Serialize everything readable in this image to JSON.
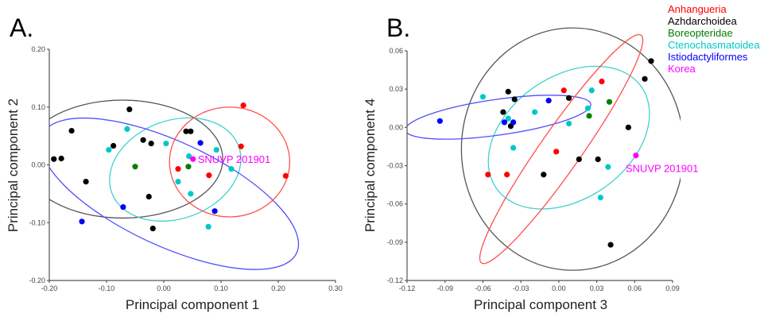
{
  "legend": {
    "placement": "top-right",
    "entries": [
      {
        "label": "Anhangueria",
        "color": "#ff0000"
      },
      {
        "label": "Azhdarchoidea",
        "color": "#000000"
      },
      {
        "label": "Boreopteridae",
        "color": "#008000"
      },
      {
        "label": "Ctenochasmatoidea",
        "color": "#00c8c8"
      },
      {
        "label": "Istiodactyliformes",
        "color": "#0000ff"
      },
      {
        "label": "Korea",
        "color": "#ff00ff"
      }
    ]
  },
  "chart_data": [
    {
      "type": "scatter",
      "panel_label": "A.",
      "xlabel": "Principal component 1",
      "ylabel": "Principal component 2",
      "xlim": [
        -0.2,
        0.3
      ],
      "ylim": [
        -0.2,
        0.2
      ],
      "xticks": [
        "-0.20",
        "-0.10",
        "0.00",
        "0.10",
        "0.20",
        "0.30"
      ],
      "yticks": [
        "0.20",
        "0.10",
        "0.00",
        "-0.10",
        "-0.20"
      ],
      "grid": false,
      "annotation": {
        "text": "SNUVP 201901",
        "x": 0.051,
        "y": 0.01
      },
      "series": [
        {
          "name": "Azhdarchoidea",
          "color": "#000000",
          "points": [
            [
              -0.192,
              0.01
            ],
            [
              -0.179,
              0.011
            ],
            [
              -0.161,
              0.059
            ],
            [
              -0.136,
              -0.029
            ],
            [
              -0.088,
              0.033
            ],
            [
              -0.06,
              0.096
            ],
            [
              -0.036,
              0.043
            ],
            [
              -0.022,
              0.037
            ],
            [
              -0.026,
              -0.055
            ],
            [
              -0.019,
              -0.11
            ],
            [
              0.039,
              0.058
            ],
            [
              0.047,
              0.058
            ]
          ]
        },
        {
          "name": "Ctenochasmatoidea",
          "color": "#00c8c8",
          "points": [
            [
              -0.096,
              0.026
            ],
            [
              -0.064,
              0.062
            ],
            [
              0.004,
              0.037
            ],
            [
              0.044,
              0.015
            ],
            [
              0.025,
              -0.029
            ],
            [
              0.047,
              -0.05
            ],
            [
              0.092,
              0.026
            ],
            [
              0.118,
              -0.007
            ],
            [
              0.078,
              -0.107
            ]
          ]
        },
        {
          "name": "Istiodactyliformes",
          "color": "#0000ff",
          "points": [
            [
              -0.143,
              -0.098
            ],
            [
              -0.071,
              -0.073
            ],
            [
              0.064,
              0.038
            ],
            [
              0.089,
              -0.08
            ]
          ]
        },
        {
          "name": "Anhangueria",
          "color": "#ff0000",
          "points": [
            [
              0.025,
              -0.007
            ],
            [
              0.079,
              -0.018
            ],
            [
              0.135,
              0.032
            ],
            [
              0.139,
              0.103
            ],
            [
              0.213,
              -0.019
            ]
          ]
        },
        {
          "name": "Boreopteridae",
          "color": "#008000",
          "points": [
            [
              -0.05,
              -0.003
            ],
            [
              0.043,
              -0.003
            ]
          ]
        },
        {
          "name": "Korea",
          "color": "#ff00ff",
          "points": [
            [
              0.051,
              0.01
            ]
          ]
        }
      ],
      "ellipses": [
        {
          "group": "Azhdarchoidea",
          "color": "#555555",
          "cx": -0.072,
          "cy": 0.01,
          "rx": 0.175,
          "ry": 0.102,
          "angle": 0
        },
        {
          "group": "Ctenochasmatoidea",
          "color": "#40d0d0",
          "cx": 0.02,
          "cy": -0.008,
          "rx": 0.118,
          "ry": 0.085,
          "angle": -20
        },
        {
          "group": "Istiodactyliformes",
          "color": "#5050ff",
          "cx": 0.01,
          "cy": -0.05,
          "rx": 0.245,
          "ry": 0.09,
          "angle": 25
        },
        {
          "group": "Anhangueria",
          "color": "#ff5050",
          "cx": 0.115,
          "cy": 0.005,
          "rx": 0.105,
          "ry": 0.095,
          "angle": 0
        }
      ]
    },
    {
      "type": "scatter",
      "panel_label": "B.",
      "xlabel": "Principal component 3",
      "ylabel": "Principal component 4",
      "xlim": [
        -0.12,
        0.09
      ],
      "ylim": [
        -0.12,
        0.06
      ],
      "xticks": [
        "-0.12",
        "-0.09",
        "-0.06",
        "-0.03",
        "0.00",
        "0.03",
        "0.06",
        "0.09"
      ],
      "yticks": [
        "0.06",
        "0.03",
        "0.00",
        "-0.03",
        "-0.06",
        "-0.09",
        "-0.12"
      ],
      "grid": false,
      "annotation": {
        "text": "SNUVP 201901",
        "x": 0.061,
        "y": -0.022
      },
      "series": [
        {
          "name": "Azhdarchoidea",
          "color": "#000000",
          "points": [
            [
              -0.04,
              0.028
            ],
            [
              -0.035,
              0.022
            ],
            [
              -0.044,
              0.012
            ],
            [
              -0.038,
              0.001
            ],
            [
              -0.012,
              -0.037
            ],
            [
              0.008,
              0.023
            ],
            [
              0.016,
              -0.025
            ],
            [
              0.031,
              -0.025
            ],
            [
              0.055,
              0.0
            ],
            [
              0.068,
              0.038
            ],
            [
              0.073,
              0.052
            ],
            [
              0.041,
              -0.092
            ]
          ]
        },
        {
          "name": "Ctenochasmatoidea",
          "color": "#00c8c8",
          "points": [
            [
              -0.06,
              0.024
            ],
            [
              -0.04,
              0.007
            ],
            [
              -0.036,
              -0.016
            ],
            [
              -0.019,
              0.012
            ],
            [
              0.008,
              0.003
            ],
            [
              0.023,
              0.015
            ],
            [
              0.026,
              0.029
            ],
            [
              0.039,
              -0.031
            ],
            [
              0.033,
              -0.055
            ]
          ]
        },
        {
          "name": "Istiodactyliformes",
          "color": "#0000ff",
          "points": [
            [
              -0.094,
              0.005
            ],
            [
              -0.043,
              0.004
            ],
            [
              -0.036,
              0.004
            ],
            [
              -0.008,
              0.021
            ]
          ]
        },
        {
          "name": "Anhangueria",
          "color": "#ff0000",
          "points": [
            [
              -0.056,
              -0.037
            ],
            [
              -0.041,
              -0.037
            ],
            [
              -0.002,
              -0.019
            ],
            [
              0.004,
              0.029
            ],
            [
              0.034,
              0.036
            ]
          ]
        },
        {
          "name": "Boreopteridae",
          "color": "#008000",
          "points": [
            [
              0.024,
              0.009
            ],
            [
              0.04,
              0.02
            ]
          ]
        },
        {
          "name": "Korea",
          "color": "#ff00ff",
          "points": [
            [
              0.061,
              -0.022
            ]
          ]
        }
      ],
      "ellipses": [
        {
          "group": "Azhdarchoidea",
          "color": "#555555",
          "cx": 0.011,
          "cy": -0.017,
          "rx": 0.088,
          "ry": 0.095,
          "angle": 0
        },
        {
          "group": "Ctenochasmatoidea",
          "color": "#40d0d0",
          "cx": 0.008,
          "cy": -0.008,
          "rx": 0.07,
          "ry": 0.048,
          "angle": -35
        },
        {
          "group": "Istiodactyliformes",
          "color": "#5050ff",
          "cx": -0.048,
          "cy": 0.008,
          "rx": 0.074,
          "ry": 0.014,
          "angle": -8
        },
        {
          "group": "Anhangueria",
          "color": "#ff5050",
          "cx": 0.002,
          "cy": -0.017,
          "rx": 0.11,
          "ry": 0.016,
          "angle": -55
        }
      ]
    }
  ]
}
